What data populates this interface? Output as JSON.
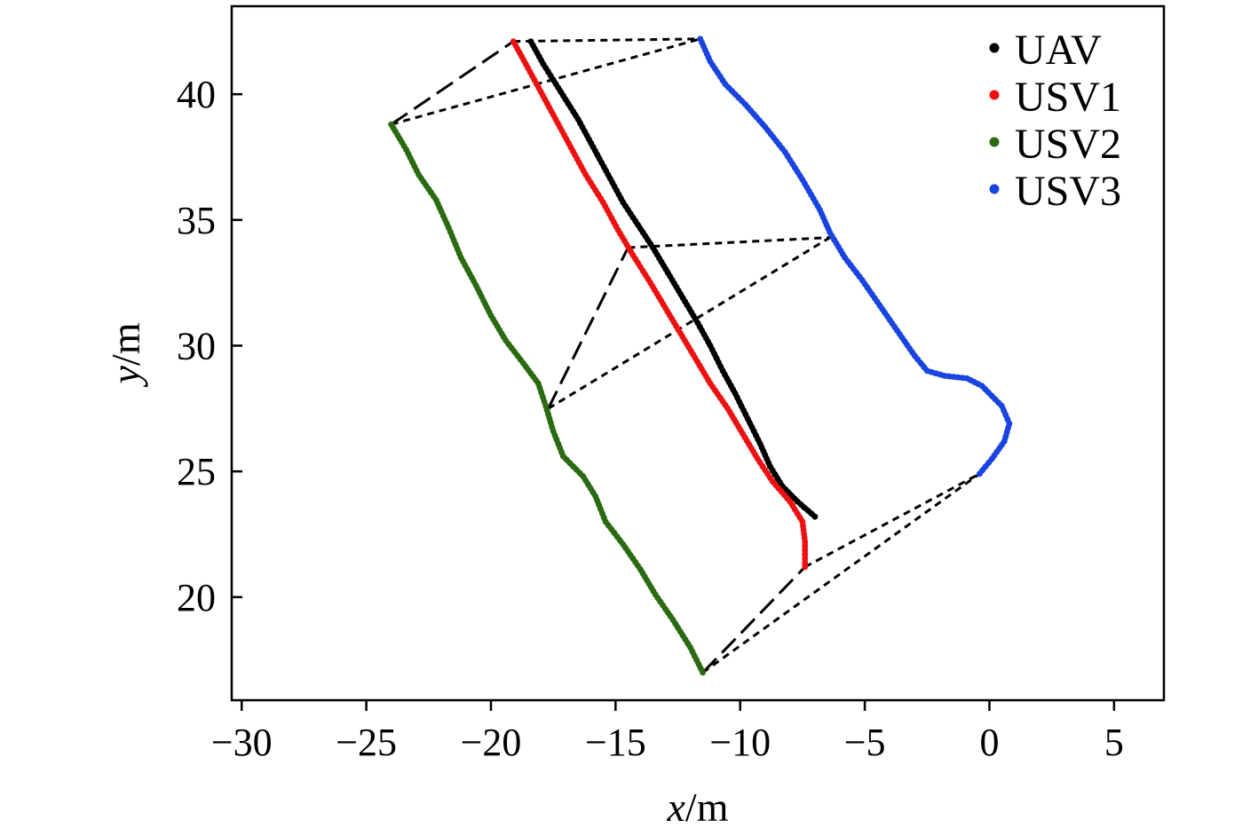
{
  "chart_data": {
    "type": "scatter",
    "xlabel": {
      "var": "x",
      "unit": "/m"
    },
    "ylabel": {
      "var": "y",
      "unit": "/m"
    },
    "xlim": [
      -30.4,
      7
    ],
    "ylim": [
      15.9,
      43.5
    ],
    "xticks": [
      -30,
      -25,
      -20,
      -15,
      -10,
      -5,
      0,
      5
    ],
    "yticks": [
      20,
      25,
      30,
      35,
      40
    ],
    "xtick_labels": [
      "−30",
      "−25",
      "−20",
      "−15",
      "−10",
      "−5",
      "0",
      "5"
    ],
    "ytick_labels": [
      "20",
      "25",
      "30",
      "35",
      "40"
    ],
    "grid": false,
    "legend_position": "top-right",
    "series": [
      {
        "name": "UAV",
        "color": "#000000",
        "points": [
          [
            -18.4,
            42.1
          ],
          [
            -17.9,
            41.2
          ],
          [
            -17.2,
            40.1
          ],
          [
            -16.5,
            39.0
          ],
          [
            -15.9,
            37.9
          ],
          [
            -15.3,
            36.8
          ],
          [
            -14.7,
            35.7
          ],
          [
            -14.1,
            34.8
          ],
          [
            -13.5,
            33.9
          ],
          [
            -12.9,
            32.9
          ],
          [
            -12.3,
            31.9
          ],
          [
            -11.7,
            30.9
          ],
          [
            -11.2,
            30.0
          ],
          [
            -10.7,
            29.0
          ],
          [
            -10.2,
            28.1
          ],
          [
            -9.7,
            27.1
          ],
          [
            -9.2,
            26.1
          ],
          [
            -8.8,
            25.2
          ],
          [
            -8.3,
            24.4
          ],
          [
            -7.7,
            23.8
          ],
          [
            -7.0,
            23.2
          ]
        ]
      },
      {
        "name": "USV1",
        "color": "#ee1111",
        "points": [
          [
            -19.1,
            42.1
          ],
          [
            -18.6,
            41.2
          ],
          [
            -18.0,
            40.1
          ],
          [
            -17.4,
            39.0
          ],
          [
            -16.8,
            37.9
          ],
          [
            -16.2,
            36.8
          ],
          [
            -15.5,
            35.7
          ],
          [
            -14.9,
            34.6
          ],
          [
            -14.3,
            33.6
          ],
          [
            -13.6,
            32.5
          ],
          [
            -13.0,
            31.5
          ],
          [
            -12.4,
            30.5
          ],
          [
            -11.8,
            29.5
          ],
          [
            -11.2,
            28.5
          ],
          [
            -10.5,
            27.5
          ],
          [
            -9.9,
            26.5
          ],
          [
            -9.3,
            25.5
          ],
          [
            -8.7,
            24.6
          ],
          [
            -8.0,
            23.8
          ],
          [
            -7.5,
            23.0
          ],
          [
            -7.4,
            22.2
          ],
          [
            -7.4,
            21.2
          ]
        ]
      },
      {
        "name": "USV2",
        "color": "#2a6b12",
        "points": [
          [
            -24.0,
            38.8
          ],
          [
            -23.4,
            37.8
          ],
          [
            -22.9,
            36.8
          ],
          [
            -22.2,
            35.8
          ],
          [
            -21.7,
            34.7
          ],
          [
            -21.2,
            33.5
          ],
          [
            -20.6,
            32.4
          ],
          [
            -20.0,
            31.2
          ],
          [
            -19.4,
            30.2
          ],
          [
            -18.7,
            29.3
          ],
          [
            -18.1,
            28.5
          ],
          [
            -17.8,
            27.6
          ],
          [
            -17.5,
            26.6
          ],
          [
            -17.1,
            25.6
          ],
          [
            -16.3,
            24.8
          ],
          [
            -15.8,
            24.0
          ],
          [
            -15.4,
            23.0
          ],
          [
            -14.7,
            22.1
          ],
          [
            -14.0,
            21.1
          ],
          [
            -13.4,
            20.1
          ],
          [
            -12.7,
            19.1
          ],
          [
            -12.0,
            18.0
          ],
          [
            -11.5,
            17.0
          ]
        ]
      },
      {
        "name": "USV3",
        "color": "#1a44e0",
        "points": [
          [
            -11.6,
            42.2
          ],
          [
            -11.2,
            41.3
          ],
          [
            -10.6,
            40.4
          ],
          [
            -9.8,
            39.6
          ],
          [
            -9.0,
            38.7
          ],
          [
            -8.2,
            37.7
          ],
          [
            -7.5,
            36.6
          ],
          [
            -6.8,
            35.4
          ],
          [
            -6.4,
            34.5
          ],
          [
            -5.8,
            33.5
          ],
          [
            -5.1,
            32.6
          ],
          [
            -4.4,
            31.6
          ],
          [
            -3.7,
            30.6
          ],
          [
            -3.0,
            29.6
          ],
          [
            -2.5,
            29.0
          ],
          [
            -1.8,
            28.8
          ],
          [
            -0.9,
            28.7
          ],
          [
            -0.3,
            28.4
          ],
          [
            0.5,
            27.6
          ],
          [
            0.8,
            26.9
          ],
          [
            0.6,
            26.2
          ],
          [
            0.1,
            25.5
          ],
          [
            -0.4,
            24.9
          ]
        ]
      }
    ],
    "formation_links": [
      {
        "style": "long-dash",
        "points": [
          [
            -24.0,
            38.8
          ],
          [
            -19.1,
            42.1
          ]
        ]
      },
      {
        "style": "short-dash",
        "points": [
          [
            -24.0,
            38.8
          ],
          [
            -11.6,
            42.2
          ]
        ]
      },
      {
        "style": "short-dash",
        "points": [
          [
            -19.1,
            42.1
          ],
          [
            -11.6,
            42.2
          ]
        ]
      },
      {
        "style": "long-dash",
        "points": [
          [
            -17.7,
            27.5
          ],
          [
            -14.5,
            33.9
          ]
        ]
      },
      {
        "style": "short-dash",
        "points": [
          [
            -17.7,
            27.5
          ],
          [
            -6.4,
            34.3
          ]
        ]
      },
      {
        "style": "short-dash",
        "points": [
          [
            -14.5,
            33.9
          ],
          [
            -6.4,
            34.3
          ]
        ]
      },
      {
        "style": "long-dash",
        "points": [
          [
            -11.5,
            17.0
          ],
          [
            -7.4,
            21.2
          ]
        ]
      },
      {
        "style": "short-dash",
        "points": [
          [
            -11.5,
            17.0
          ],
          [
            -0.4,
            24.9
          ]
        ]
      },
      {
        "style": "short-dash",
        "points": [
          [
            -7.4,
            21.2
          ],
          [
            -0.4,
            24.9
          ]
        ]
      }
    ]
  }
}
